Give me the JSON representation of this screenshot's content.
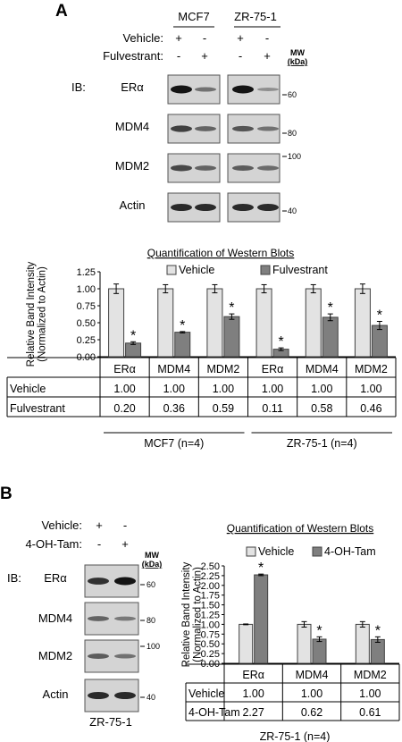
{
  "panelA": {
    "label": "A",
    "blot": {
      "cell_lines": [
        "MCF7",
        "ZR-75-1"
      ],
      "rows": [
        {
          "label": "Vehicle:",
          "signs": [
            "+",
            "-",
            "+",
            "-"
          ]
        },
        {
          "label": "Fulvestrant:",
          "signs": [
            "-",
            "+",
            "-",
            "+"
          ]
        }
      ],
      "ib_label": "IB:",
      "mw_label": "MW",
      "mw_unit": "(kDa)",
      "proteins": [
        {
          "name": "ERα",
          "mw": "60"
        },
        {
          "name": "MDM4",
          "mw": "80"
        },
        {
          "name": "MDM2",
          "mw": "100"
        },
        {
          "name": "Actin",
          "mw": "40"
        }
      ],
      "band_intensity": [
        [
          1.0,
          0.35,
          1.0,
          0.15
        ],
        [
          0.7,
          0.45,
          0.55,
          0.35
        ],
        [
          0.65,
          0.45,
          0.5,
          0.4
        ],
        [
          0.85,
          0.85,
          0.85,
          0.85
        ]
      ]
    },
    "chart_title": "Quantification of Western Blots",
    "table": {
      "headers": [
        "ERα",
        "MDM4",
        "MDM2",
        "ERα",
        "MDM4",
        "MDM2"
      ],
      "rows": [
        {
          "label": "Vehicle",
          "values": [
            "1.00",
            "1.00",
            "1.00",
            "1.00",
            "1.00",
            "1.00"
          ]
        },
        {
          "label": "Fulvestrant",
          "values": [
            "0.20",
            "0.36",
            "0.59",
            "0.11",
            "0.58",
            "0.46"
          ]
        }
      ],
      "groups": [
        "MCF7 (n=4)",
        "ZR-75-1 (n=4)"
      ]
    }
  },
  "panelB": {
    "label": "B",
    "blot": {
      "rows": [
        {
          "label": "Vehicle:",
          "signs": [
            "+",
            "-"
          ]
        },
        {
          "label": "4-OH-Tam:",
          "signs": [
            "-",
            "+"
          ]
        }
      ],
      "ib_label": "IB:",
      "mw_label": "MW",
      "mw_unit": "(kDa)",
      "proteins": [
        {
          "name": "ERα",
          "mw": "60"
        },
        {
          "name": "MDM4",
          "mw": "80"
        },
        {
          "name": "MDM2",
          "mw": "100"
        },
        {
          "name": "Actin",
          "mw": "40"
        }
      ],
      "cell_line": "ZR-75-1",
      "band_intensity": [
        [
          0.8,
          1.0
        ],
        [
          0.45,
          0.3
        ],
        [
          0.5,
          0.35
        ],
        [
          0.85,
          0.85
        ]
      ]
    },
    "chart_title": "Quantification of Western Blots",
    "table": {
      "headers": [
        "ERα",
        "MDM4",
        "MDM2"
      ],
      "rows": [
        {
          "label": "Vehicle",
          "values": [
            "1.00",
            "1.00",
            "1.00"
          ]
        },
        {
          "label": "4-OH-Tam",
          "values": [
            "2.27",
            "0.62",
            "0.61"
          ]
        }
      ],
      "group": "ZR-75-1 (n=4)"
    }
  },
  "colors": {
    "vehicle_bar": "#e3e3e3",
    "treatment_bar": "#7f7f7f",
    "bar_stroke": "#404040",
    "blot_bg": "#d4d4d4",
    "band": "#141414"
  },
  "chart_data": [
    {
      "type": "bar",
      "title": "Quantification of Western Blots",
      "ylabel": "Relative Band Intensity (Normalized to Actin)",
      "xlabel": "",
      "ylim": [
        0,
        1.25
      ],
      "yticks": [
        "0.00",
        "0.25",
        "0.50",
        "0.75",
        "1.00",
        "1.25"
      ],
      "categories": [
        "ERα",
        "MDM4",
        "MDM2",
        "ERα",
        "MDM4",
        "MDM2"
      ],
      "series": [
        {
          "name": "Vehicle",
          "values": [
            1.0,
            1.0,
            1.0,
            1.0,
            1.0,
            1.0
          ],
          "errors": [
            0.07,
            0.06,
            0.06,
            0.06,
            0.06,
            0.07
          ],
          "color": "#e3e3e3"
        },
        {
          "name": "Fulvestrant",
          "values": [
            0.2,
            0.36,
            0.59,
            0.11,
            0.58,
            0.46
          ],
          "errors": [
            0.02,
            0.01,
            0.04,
            0.02,
            0.05,
            0.06
          ],
          "color": "#7f7f7f"
        }
      ],
      "significance": [
        false,
        true,
        false,
        true,
        false,
        true,
        false,
        true,
        false,
        true,
        false,
        true
      ],
      "annotation": "*",
      "legend": "top",
      "grid": false
    },
    {
      "type": "bar",
      "title": "Quantification of Western Blots",
      "ylabel": "Relative Band Intensity (Normalized to Actin)",
      "xlabel": "",
      "ylim": [
        0,
        2.5
      ],
      "yticks": [
        "0.00",
        "0.25",
        "0.50",
        "0.75",
        "1.00",
        "1.25",
        "1.50",
        "1.75",
        "2.00",
        "2.25",
        "2.50"
      ],
      "categories": [
        "ERα",
        "MDM4",
        "MDM2"
      ],
      "series": [
        {
          "name": "Vehicle",
          "values": [
            1.0,
            1.0,
            1.0
          ],
          "errors": [
            0.01,
            0.07,
            0.07
          ],
          "color": "#e3e3e3"
        },
        {
          "name": "4-OH-Tam",
          "values": [
            2.27,
            0.62,
            0.61
          ],
          "errors": [
            0.02,
            0.06,
            0.07
          ],
          "color": "#7f7f7f"
        }
      ],
      "significance": [
        false,
        true,
        false,
        true,
        false,
        true
      ],
      "annotation": "*",
      "legend": "top",
      "grid": false
    }
  ]
}
